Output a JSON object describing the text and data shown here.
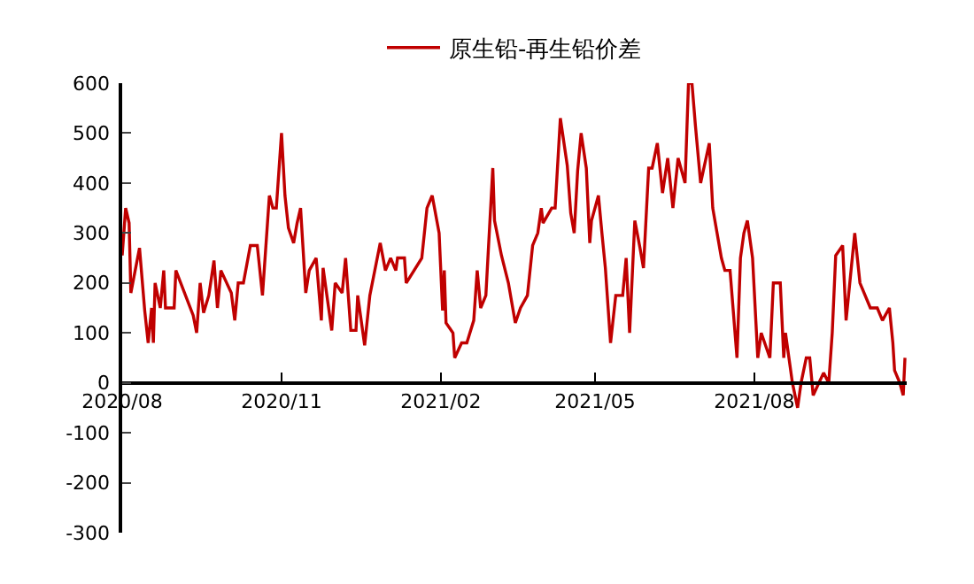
{
  "chart_data": {
    "type": "line",
    "legend": "top",
    "x": [
      "2020-08-01",
      "2020-08-03",
      "2020-08-05",
      "2020-08-06",
      "2020-08-11",
      "2020-08-14",
      "2020-08-16",
      "2020-08-18",
      "2020-08-19",
      "2020-08-20",
      "2020-08-23",
      "2020-08-25",
      "2020-08-26",
      "2020-08-31",
      "2020-09-01",
      "2020-09-11",
      "2020-09-13",
      "2020-09-15",
      "2020-09-17",
      "2020-09-20",
      "2020-09-23",
      "2020-09-25",
      "2020-09-27",
      "2020-10-03",
      "2020-10-05",
      "2020-10-07",
      "2020-10-10",
      "2020-10-14",
      "2020-10-18",
      "2020-10-21",
      "2020-10-25",
      "2020-10-27",
      "2020-10-29",
      "2020-11-01",
      "2020-11-03",
      "2020-11-05",
      "2020-11-08",
      "2020-11-10",
      "2020-11-12",
      "2020-11-15",
      "2020-11-17",
      "2020-11-21",
      "2020-11-24",
      "2020-11-25",
      "2020-11-30",
      "2020-12-02",
      "2020-12-06",
      "2020-12-08",
      "2020-12-11",
      "2020-12-14",
      "2020-12-15",
      "2020-12-19",
      "2020-12-22",
      "2020-12-28",
      "2020-12-31",
      "2021-01-03",
      "2021-01-06",
      "2021-01-07",
      "2021-01-11",
      "2021-01-12",
      "2021-01-21",
      "2021-01-24",
      "2021-01-27",
      "2021-01-31",
      "2021-02-02",
      "2021-02-03",
      "2021-02-04",
      "2021-02-08",
      "2021-02-09",
      "2021-02-13",
      "2021-02-16",
      "2021-02-20",
      "2021-02-22",
      "2021-02-24",
      "2021-02-27",
      "2021-03-03",
      "2021-03-04",
      "2021-03-08",
      "2021-03-12",
      "2021-03-16",
      "2021-03-19",
      "2021-03-23",
      "2021-03-26",
      "2021-03-29",
      "2021-03-31",
      "2021-04-01",
      "2021-04-06",
      "2021-04-08",
      "2021-04-11",
      "2021-04-15",
      "2021-04-17",
      "2021-04-19",
      "2021-04-21",
      "2021-04-23",
      "2021-04-26",
      "2021-04-28",
      "2021-04-29",
      "2021-05-03",
      "2021-05-05",
      "2021-05-07",
      "2021-05-10",
      "2021-05-13",
      "2021-05-17",
      "2021-05-19",
      "2021-05-21",
      "2021-05-24",
      "2021-05-27",
      "2021-05-29",
      "2021-06-01",
      "2021-06-03",
      "2021-06-06",
      "2021-06-09",
      "2021-06-12",
      "2021-06-15",
      "2021-06-18",
      "2021-06-22",
      "2021-06-24",
      "2021-06-26",
      "2021-06-28",
      "2021-07-01",
      "2021-07-06",
      "2021-07-08",
      "2021-07-13",
      "2021-07-15",
      "2021-07-18",
      "2021-07-22",
      "2021-07-24",
      "2021-07-26",
      "2021-07-28",
      "2021-07-31",
      "2021-08-03",
      "2021-08-05",
      "2021-08-10",
      "2021-08-12",
      "2021-08-16",
      "2021-08-18",
      "2021-08-19",
      "2021-08-21",
      "2021-08-23",
      "2021-08-26",
      "2021-08-28",
      "2021-08-31",
      "2021-09-02",
      "2021-09-04",
      "2021-09-10",
      "2021-09-13",
      "2021-09-15",
      "2021-09-17",
      "2021-09-21",
      "2021-09-23",
      "2021-09-28",
      "2021-10-01",
      "2021-10-07",
      "2021-10-11",
      "2021-10-14",
      "2021-10-18",
      "2021-10-20",
      "2021-10-21",
      "2021-10-24",
      "2021-10-26",
      "2021-10-27"
    ],
    "series": [
      {
        "name": "原生铅-再生铅价差",
        "color": "#c00000",
        "values": [
          255,
          350,
          320,
          180,
          270,
          145,
          80,
          150,
          80,
          200,
          150,
          225,
          150,
          150,
          225,
          135,
          100,
          200,
          140,
          175,
          245,
          150,
          225,
          180,
          125,
          200,
          200,
          275,
          275,
          175,
          375,
          350,
          350,
          500,
          375,
          310,
          280,
          320,
          350,
          180,
          225,
          250,
          125,
          230,
          105,
          200,
          180,
          250,
          105,
          105,
          175,
          75,
          175,
          280,
          225,
          250,
          225,
          250,
          250,
          200,
          250,
          350,
          375,
          300,
          145,
          225,
          120,
          100,
          50,
          80,
          80,
          125,
          225,
          150,
          175,
          430,
          325,
          255,
          200,
          120,
          150,
          175,
          275,
          300,
          350,
          320,
          350,
          350,
          530,
          435,
          340,
          300,
          425,
          500,
          430,
          280,
          325,
          375,
          300,
          230,
          80,
          175,
          175,
          250,
          100,
          325,
          270,
          230,
          430,
          430,
          480,
          380,
          450,
          350,
          450,
          400,
          600,
          600,
          515,
          400,
          480,
          350,
          250,
          225,
          225,
          50,
          250,
          300,
          325,
          250,
          50,
          100,
          50,
          200,
          200,
          50,
          100,
          50,
          0,
          -50,
          0,
          50,
          50,
          -25,
          20,
          0,
          100,
          255,
          275,
          125,
          300,
          200,
          150,
          150,
          125,
          150,
          80,
          25,
          0,
          -25,
          50
        ]
      }
    ],
    "xlim": [
      "2020-08-01",
      "2021-10-28"
    ],
    "xticks": [
      {
        "value": "2020-08-01",
        "label": "2020/08"
      },
      {
        "value": "2020-11-01",
        "label": "2020/11"
      },
      {
        "value": "2021-02-01",
        "label": "2021/02"
      },
      {
        "value": "2021-05-01",
        "label": "2021/05"
      },
      {
        "value": "2021-08-01",
        "label": "2021/08"
      }
    ],
    "ylim": [
      -300,
      600
    ],
    "yticks": [
      -300,
      -200,
      -100,
      0,
      100,
      200,
      300,
      400,
      500,
      600
    ],
    "marker": "none",
    "line_style": "solid"
  }
}
